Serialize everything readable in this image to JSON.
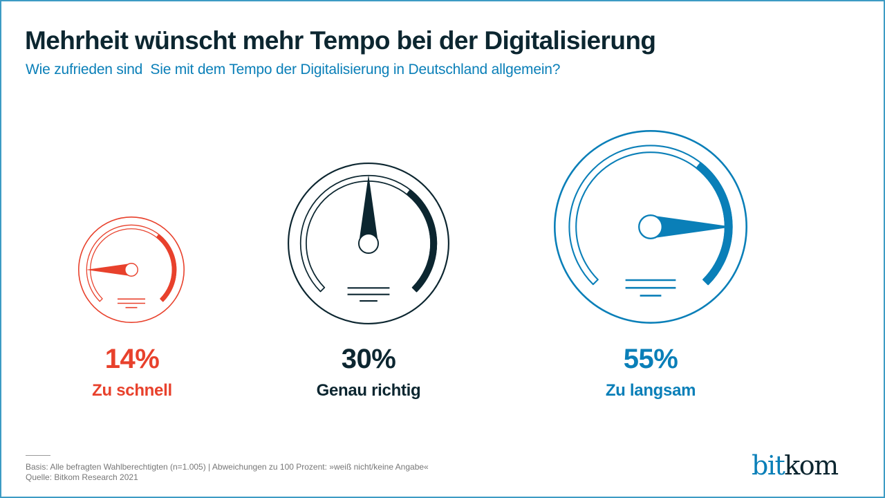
{
  "header": {
    "title": "Mehrheit wünscht mehr Tempo bei der Digitalisierung",
    "subtitle": "Wie zufrieden sind  Sie mit dem Tempo der Digitalisierung in Deutschland allgemein?"
  },
  "colors": {
    "title": "#0c2630",
    "subtitle": "#0a7fb8",
    "red": "#e8412c",
    "dark": "#0c2630",
    "blue": "#0a7fb8",
    "frame": "#3d9bc4"
  },
  "chart_data": {
    "type": "gauge",
    "title": "Mehrheit wünscht mehr Tempo bei der Digitalisierung",
    "subtitle": "Wie zufrieden sind  Sie mit dem Tempo der Digitalisierung in Deutschland allgemein?",
    "categories": [
      "Zu schnell",
      "Genau richtig",
      "Zu langsam"
    ],
    "values": [
      14,
      30,
      55
    ],
    "unit": "%",
    "items": [
      {
        "label": "Zu schnell",
        "value": 14,
        "value_text": "14%",
        "color": "#e8412c",
        "needle": "left"
      },
      {
        "label": "Genau richtig",
        "value": 30,
        "value_text": "30%",
        "color": "#0c2630",
        "needle": "up"
      },
      {
        "label": "Zu langsam",
        "value": 55,
        "value_text": "55%",
        "color": "#0a7fb8",
        "needle": "right"
      }
    ]
  },
  "footer": {
    "basis": "Basis: Alle befragten Wahlberechtigten (n=1.005) | Abweichungen zu 100 Prozent: »weiß nicht/keine Angabe«",
    "source": "Quelle: Bitkom Research 2021"
  },
  "logo": {
    "part1": "bit",
    "part2": "kom",
    "color1": "#0a7fb8",
    "color2": "#0c2630"
  }
}
